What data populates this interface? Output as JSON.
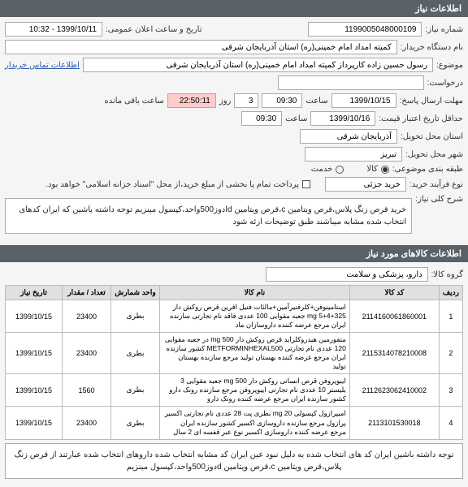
{
  "sections": {
    "sec1": "اطلاعات نیاز",
    "sec2": "اطلاعات کالاهای مورد نیاز"
  },
  "labels": {
    "need_no": "شماره نیاز:",
    "announce_dt": "تاریخ و ساعت اعلان عمومی:",
    "buyer_org": "نام دستگاه خریدار:",
    "buyer_contact": "اطلاعات تماس خریدار",
    "topic": "موضوع:",
    "request": "درخواست:",
    "deadline": "مهلت ارسال پاسخ:",
    "hour": "ساعت",
    "day": "روز",
    "remain": "ساعت باقی مانده",
    "min_valid": "حداقل تاریخ اعتبار قیمت:",
    "delivery_prov": "استان محل تحویل:",
    "delivery_city": "شهر محل تحویل:",
    "budget_cls": "طبقه بندی موضوعی:",
    "goods": "کالا",
    "service": "خدمت",
    "buy_type": "نوع فرآیند خرید:",
    "yellow_note": "پرداخت تمام یا بخشی از مبلغ خرید،از محل \"اسناد خزانه اسلامی\" خواهد بود.",
    "need_summary": "شرح کلی نیاز:",
    "goods_group": "گروه کالا:"
  },
  "values": {
    "need_no": "1199005048000109",
    "announce_dt": "1399/10/11 - 10:32",
    "buyer_org": "کمیته امداد امام خمینی(ره) استان آذربایجان شرقی",
    "topic": "رسول  حسین زاده  کارپرداز کمیته امداد امام خمینی(ره) استان آذربایجان شرقی",
    "deadline_date": "1399/10/15",
    "deadline_time": "09:30",
    "deadline_days": "3",
    "remain_time": "22:50:11",
    "valid_date": "1399/10/16",
    "valid_time": "09:30",
    "prov": "آذربایجان شرقی",
    "city": "تبریز",
    "buy_type": "خرید جزئی",
    "summary": "خرید قرص زنگ پلاس،قرص ویتامین c،قرص ویتامین dادوز500واحد،کپسول مینزیم توجه داشته باشین که ایران کدهای انتخاب شده مشابه میباشند طبق توضیحات ارئه شود",
    "goods_group": "دارو، پزشکی و سلامت",
    "footer_note": "توجه داشته باشین ایران کد های انتخاب شده به دلیل نبود عین ایران کد مشابه انتخاب شده داروهای انتخاب شده عبارتند از قرص زنگ پلاس،قرص ویتامین c،قرص ویتامین dدوز500واحد،کپسول مینزیم"
  },
  "table": {
    "headers": {
      "radif": "ردیف",
      "code": "کد کالا",
      "name": "نام کالا",
      "unit": "واحد شمارش",
      "qty": "تعداد / مقدار",
      "date": "تاریخ نیاز"
    },
    "rows": [
      {
        "r": "1",
        "code": "2114160061860001",
        "name": "استامینوفن+کلرفنیرآمین+مالئات فنیل افرین قرص روکش دار 325+4+5 mg جعبه مقوایی 100 عددی فاقد نام تجارتی سازنده ایران مرجع عرضه کننده داروسازان ماد",
        "unit": "بطری",
        "qty": "23400",
        "date": "1399/10/15"
      },
      {
        "r": "2",
        "code": "2115314078210008",
        "name": "متفورمین هیدروکلراید قرص روکش دار 500 mg در جعبه مقوایی 120 عددی نام تجارتی METFORMINHEXAL500 کشور سازنده ایران مرجع عرضه کننده بهستان تولید مرجع سازنده بهستان تولید",
        "unit": "بطری",
        "qty": "23400",
        "date": "1399/10/15"
      },
      {
        "r": "3",
        "code": "2112623062410002",
        "name": "ایبوپروفن قرص انسانی روکش دار mg 500 جعبه مقوایی 3 بلیستر 10 عددی نام تجارتی ایبوپروفن مرجع سازنده رونک دارو کشور سازنده ایران مرجع عرضه کننده رونک دارو",
        "unit": "بطری",
        "qty": "1560",
        "date": "1399/10/15"
      },
      {
        "r": "4",
        "code": "2113101530018",
        "name": "اميپرازول کپسولی 20 mg بطری پت 28 عددی نام تجارتی اکسیر پرازول مرجع سازنده داروسازی اکسیر کشور سازنده ایران مرجع عرضه کننده داروسازی اکسیر نوع عبر قفسه ای 2 سال",
        "unit": "بطری",
        "qty": "23400",
        "date": "1399/10/15"
      }
    ]
  }
}
